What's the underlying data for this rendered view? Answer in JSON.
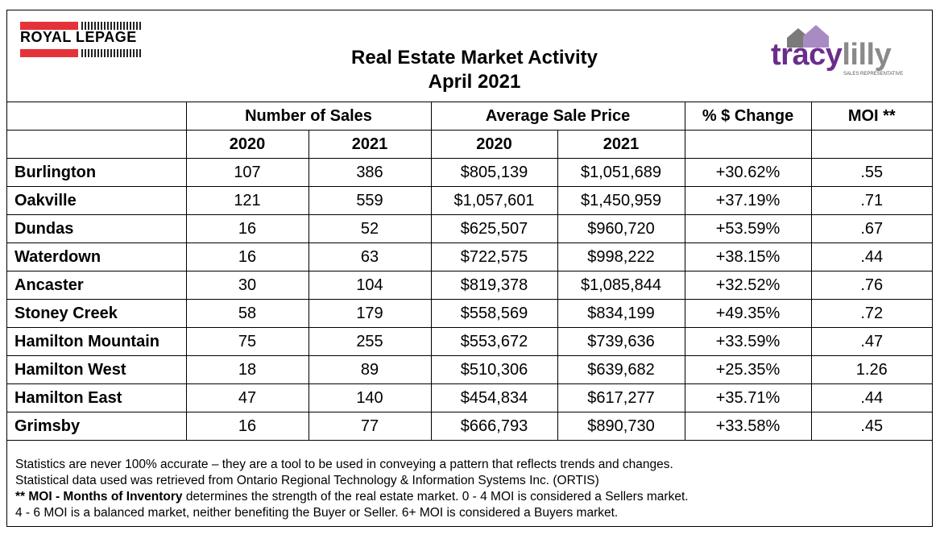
{
  "brand": {
    "left_logo_text": "ROYAL LEPAGE",
    "right_logo_main": "tracy",
    "right_logo_accent": "lilly",
    "right_logo_sub": "SALES REPRESENTATIVE"
  },
  "title": {
    "line1": "Real Estate Market Activity",
    "line2": "April 2021"
  },
  "headers": {
    "sales": "Number of Sales",
    "price": "Average Sale Price",
    "change": "% $ Change",
    "moi": "MOI **",
    "y1": "2020",
    "y2": "2021"
  },
  "rows": [
    {
      "name": "Burlington",
      "s2020": "107",
      "s2021": "386",
      "p2020": "$805,139",
      "p2021": "$1,051,689",
      "change": "+30.62%",
      "moi": ".55"
    },
    {
      "name": "Oakville",
      "s2020": "121",
      "s2021": "559",
      "p2020": "$1,057,601",
      "p2021": "$1,450,959",
      "change": "+37.19%",
      "moi": ".71"
    },
    {
      "name": "Dundas",
      "s2020": "16",
      "s2021": "52",
      "p2020": "$625,507",
      "p2021": "$960,720",
      "change": "+53.59%",
      "moi": ".67"
    },
    {
      "name": "Waterdown",
      "s2020": "16",
      "s2021": "63",
      "p2020": "$722,575",
      "p2021": "$998,222",
      "change": "+38.15%",
      "moi": ".44"
    },
    {
      "name": "Ancaster",
      "s2020": "30",
      "s2021": "104",
      "p2020": "$819,378",
      "p2021": "$1,085,844",
      "change": "+32.52%",
      "moi": ".76"
    },
    {
      "name": "Stoney Creek",
      "s2020": "58",
      "s2021": "179",
      "p2020": "$558,569",
      "p2021": "$834,199",
      "change": "+49.35%",
      "moi": ".72"
    },
    {
      "name": "Hamilton Mountain",
      "s2020": "75",
      "s2021": "255",
      "p2020": "$553,672",
      "p2021": "$739,636",
      "change": "+33.59%",
      "moi": ".47"
    },
    {
      "name": "Hamilton West",
      "s2020": "18",
      "s2021": "89",
      "p2020": "$510,306",
      "p2021": "$639,682",
      "change": "+25.35%",
      "moi": "1.26"
    },
    {
      "name": "Hamilton East",
      "s2020": "47",
      "s2021": "140",
      "p2020": "$454,834",
      "p2021": "$617,277",
      "change": "+35.71%",
      "moi": ".44"
    },
    {
      "name": "Grimsby",
      "s2020": "16",
      "s2021": "77",
      "p2020": "$666,793",
      "p2021": "$890,730",
      "change": "+33.58%",
      "moi": ".45"
    }
  ],
  "notes": {
    "line1": "Statistics are never 100% accurate – they are a tool to be used in conveying a pattern that reflects trends and changes.",
    "line2": "Statistical data used was retrieved from Ontario Regional Technology & Information Systems Inc. (ORTIS)",
    "line3_bold": "** MOI - Months of Inventory",
    "line3_rest": " determines the strength of the real estate market. 0 - 4 MOI is considered a Sellers market.",
    "line4": "4 - 6 MOI is a balanced market, neither benefiting the Buyer or Seller. 6+ MOI is considered a Buyers market."
  }
}
